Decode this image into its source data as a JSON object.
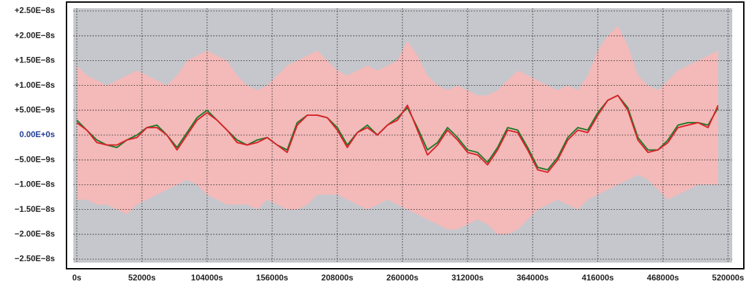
{
  "chart_data": {
    "type": "line",
    "x": [
      0,
      8000,
      16000,
      24000,
      32000,
      40000,
      48000,
      56000,
      64000,
      72000,
      80000,
      88000,
      96000,
      104000,
      112000,
      120000,
      128000,
      136000,
      144000,
      152000,
      160000,
      168000,
      176000,
      184000,
      192000,
      200000,
      208000,
      216000,
      224000,
      232000,
      240000,
      248000,
      256000,
      264000,
      272000,
      280000,
      288000,
      296000,
      304000,
      312000,
      320000,
      328000,
      336000,
      344000,
      352000,
      360000,
      368000,
      376000,
      384000,
      392000,
      400000,
      408000,
      416000,
      424000,
      432000,
      440000,
      448000,
      456000,
      464000,
      472000,
      480000,
      488000,
      496000,
      504000,
      512000
    ],
    "xlim": [
      0,
      520000
    ],
    "xticks": [
      {
        "value": 0,
        "label": "0s"
      },
      {
        "value": 52000,
        "label": "52000s"
      },
      {
        "value": 104000,
        "label": "104000s"
      },
      {
        "value": 156000,
        "label": "156000s"
      },
      {
        "value": 208000,
        "label": "208000s"
      },
      {
        "value": 260000,
        "label": "260000s"
      },
      {
        "value": 312000,
        "label": "312000s"
      },
      {
        "value": 364000,
        "label": "364000s"
      },
      {
        "value": 416000,
        "label": "416000s"
      },
      {
        "value": 468000,
        "label": "468000s"
      },
      {
        "value": 520000,
        "label": "520000s"
      }
    ],
    "ylim": [
      -2.5e-08,
      2.5e-08
    ],
    "yticks": [
      {
        "value": 2.5e-08,
        "label": "+2.50E−8s"
      },
      {
        "value": 2e-08,
        "label": "+2.00E−8s"
      },
      {
        "value": 1.5e-08,
        "label": "+1.50E−8s"
      },
      {
        "value": 1e-08,
        "label": "+1.00E−8s"
      },
      {
        "value": 5e-09,
        "label": "+5.00E−9s"
      },
      {
        "value": 0,
        "label": "0.00E+0s"
      },
      {
        "value": -5e-09,
        "label": "−5.00E−9s"
      },
      {
        "value": -1e-08,
        "label": "−1.00E−8s"
      },
      {
        "value": -1.5e-08,
        "label": "−1.50E−8s"
      },
      {
        "value": -2e-08,
        "label": "−2.00E−8s"
      },
      {
        "value": -2.5e-08,
        "label": "−2.50E−8s"
      }
    ],
    "zero_tick_color": "#1f3a93",
    "grid": true,
    "background": "#c6c7cc",
    "series": [
      {
        "kind": "area",
        "color": "#f4b9b9",
        "values": [
          1.4e-08,
          1.2e-08,
          1.1e-08,
          1e-08,
          1.1e-08,
          1.2e-08,
          1.3e-08,
          1.2e-08,
          1.1e-08,
          1e-08,
          1.2e-08,
          1.5e-08,
          1.6e-08,
          1.7e-08,
          1.6e-08,
          1.5e-08,
          1.2e-08,
          1e-08,
          9e-09,
          1e-08,
          1.2e-08,
          1.4e-08,
          1.5e-08,
          1.6e-08,
          1.7e-08,
          1.5e-08,
          1.3e-08,
          1.2e-08,
          1.3e-08,
          1.4e-08,
          1.3e-08,
          1.4e-08,
          1.5e-08,
          1.9e-08,
          1.6e-08,
          1.2e-08,
          1e-08,
          9e-09,
          1e-08,
          9e-09,
          8e-09,
          8e-09,
          9e-09,
          1.1e-08,
          1.3e-08,
          1.2e-08,
          1.1e-08,
          1e-08,
          9e-09,
          1e-08,
          9e-09,
          1.2e-08,
          1.7e-08,
          2e-08,
          2.2e-08,
          1.8e-08,
          1.2e-08,
          1e-08,
          9e-09,
          1.1e-08,
          1.3e-08,
          1.4e-08,
          1.5e-08,
          1.6e-08,
          1.7e-08
        ]
      },
      {
        "kind": "area",
        "color": "#f4b9b9",
        "values": [
          -1.3e-08,
          -1.3e-08,
          -1.4e-08,
          -1.4e-08,
          -1.5e-08,
          -1.6e-08,
          -1.4e-08,
          -1.3e-08,
          -1.2e-08,
          -1.1e-08,
          -1e-08,
          -9e-09,
          -1e-08,
          -1.2e-08,
          -1.3e-08,
          -1.4e-08,
          -1.4e-08,
          -1.4e-08,
          -1.5e-08,
          -1.3e-08,
          -1.4e-08,
          -1.5e-08,
          -1.5e-08,
          -1.4e-08,
          -1.2e-08,
          -1.2e-08,
          -1.2e-08,
          -1.3e-08,
          -1.4e-08,
          -1.5e-08,
          -1.4e-08,
          -1.3e-08,
          -1.4e-08,
          -1.5e-08,
          -1.6e-08,
          -1.7e-08,
          -1.8e-08,
          -1.9e-08,
          -1.9e-08,
          -1.8e-08,
          -1.7e-08,
          -1.8e-08,
          -2e-08,
          -2e-08,
          -1.9e-08,
          -1.7e-08,
          -1.5e-08,
          -1.4e-08,
          -1.3e-08,
          -1.4e-08,
          -1.5e-08,
          -1.3e-08,
          -1.2e-08,
          -1.1e-08,
          -1e-08,
          -9e-09,
          -8e-09,
          -9e-09,
          -1.1e-08,
          -1.3e-08,
          -1.2e-08,
          -1.1e-08,
          -1e-08,
          -1e-08,
          -1e-08
        ]
      },
      {
        "kind": "line",
        "color": "#1e7a2a",
        "values": [
          3e-09,
          1e-09,
          -1e-09,
          -2e-09,
          -2.5e-09,
          -1e-09,
          0,
          1.5e-09,
          2e-09,
          0,
          -2.5e-09,
          5e-10,
          3.5e-09,
          5e-09,
          3e-09,
          1e-09,
          -1e-09,
          -2e-09,
          -1e-09,
          -5e-10,
          -2e-09,
          -3e-09,
          2.5e-09,
          4e-09,
          4e-09,
          3.5e-09,
          1.5e-09,
          -2e-09,
          5e-10,
          2e-09,
          0,
          2e-09,
          3.5e-09,
          5.5e-09,
          1.5e-09,
          -3e-09,
          -1.5e-09,
          1.5e-09,
          -5e-10,
          -3e-09,
          -3.5e-09,
          -5.5e-09,
          -2.5e-09,
          1.5e-09,
          1e-09,
          -2.5e-09,
          -6.5e-09,
          -7e-09,
          -4.5e-09,
          -5e-10,
          1.5e-09,
          1e-09,
          4.5e-09,
          7e-09,
          8e-09,
          5.5e-09,
          -5e-10,
          -3e-09,
          -3e-09,
          -1e-09,
          2e-09,
          2.5e-09,
          2.5e-09,
          2e-09,
          5.5e-09
        ]
      },
      {
        "kind": "line",
        "color": "#d9232a",
        "values": [
          2.5e-09,
          1e-09,
          -1.5e-09,
          -2e-09,
          -2e-09,
          -1e-09,
          -5e-10,
          1.5e-09,
          1.5e-09,
          0,
          -3e-09,
          0,
          3e-09,
          4.5e-09,
          3e-09,
          1e-09,
          -1.5e-09,
          -2e-09,
          -1.5e-09,
          -5e-10,
          -2e-09,
          -3.5e-09,
          2e-09,
          4e-09,
          4e-09,
          3.5e-09,
          1e-09,
          -2.5e-09,
          5e-10,
          1.5e-09,
          0,
          2e-09,
          3e-09,
          6e-09,
          1e-09,
          -4e-09,
          -2e-09,
          1e-09,
          -1e-09,
          -3.5e-09,
          -4e-09,
          -6e-09,
          -3e-09,
          1e-09,
          5e-10,
          -3e-09,
          -7e-09,
          -7.5e-09,
          -5e-09,
          -1e-09,
          1e-09,
          5e-10,
          4e-09,
          7e-09,
          8e-09,
          5e-09,
          -1e-09,
          -3.5e-09,
          -3e-09,
          -1.5e-09,
          1.5e-09,
          2e-09,
          2.5e-09,
          1.5e-09,
          6e-09
        ]
      }
    ]
  }
}
